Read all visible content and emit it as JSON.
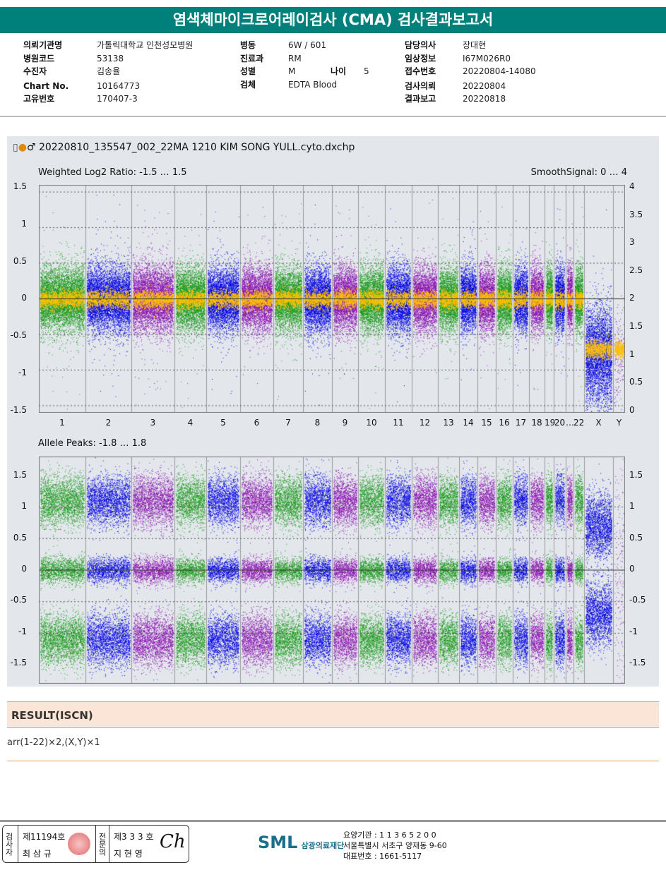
{
  "title": "염색체마이크로어레이검사 (CMA) 검사결과보고서",
  "info": {
    "col1": [
      {
        "label": "의뢰기관명",
        "value": "가톨릭대학교 인천성모병원"
      },
      {
        "label": "병원코드",
        "value": "53138"
      },
      {
        "label": "수진자",
        "value": "김송율"
      },
      {
        "label": "Chart No.",
        "value": "10164773"
      },
      {
        "label": "고유번호",
        "value": "170407-3"
      }
    ],
    "col2": [
      {
        "label": "병동",
        "value": "6W / 601"
      },
      {
        "label": "진료과",
        "value": "RM"
      },
      {
        "label": "성별",
        "value": "M"
      },
      {
        "label": "검체",
        "value": "EDTA Blood"
      }
    ],
    "age": {
      "label": "나이",
      "value": "5"
    },
    "col3": [
      {
        "label": "담당의사",
        "value": "장대현"
      },
      {
        "label": "임상정보",
        "value": "I67M026R0"
      },
      {
        "label": "접수번호",
        "value": "20220804-14080"
      },
      {
        "label": "검사의뢰",
        "value": "20220804"
      },
      {
        "label": "결과보고",
        "value": "20220818"
      }
    ]
  },
  "file_name": "20220810_135547_002_22MA 1210 KIM SONG YULL.cyto.dxchp",
  "chart_data": [
    {
      "type": "scatter",
      "title": "Weighted Log2 Ratio: -1.5 … 1.5",
      "right_title": "SmoothSignal: 0 … 4",
      "ylim": [
        -1.5,
        1.5
      ],
      "y_ticks": [
        "1.5",
        "1",
        "0.5",
        "0",
        "-0.5",
        "-1",
        "-1.5"
      ],
      "y2lim": [
        0,
        4
      ],
      "y2_ticks": [
        "4",
        "3.5",
        "3",
        "2.5",
        "2",
        "1.5",
        "1",
        "0.5",
        "0"
      ],
      "chromosomes": [
        "1",
        "2",
        "3",
        "4",
        "5",
        "6",
        "7",
        "8",
        "9",
        "10",
        "11",
        "12",
        "13",
        "14",
        "15",
        "16",
        "17",
        "18",
        "19",
        "20",
        "…",
        "22",
        "X",
        "Y"
      ],
      "baseline_log2": {
        "autosomes": 0,
        "X": -0.8,
        "Y": -0.8
      },
      "smooth_signal": {
        "autosomes": 2,
        "X": 1,
        "Y": 1
      }
    },
    {
      "type": "scatter",
      "title": "Allele Peaks: -1.8 … 1.8",
      "ylim": [
        -1.8,
        1.8
      ],
      "y_ticks": [
        "1.5",
        "1",
        "0.5",
        "0",
        "-0.5",
        "-1",
        "-1.5"
      ],
      "y2_ticks": [
        "1.5",
        "1",
        "0.5",
        "0",
        "-0.5",
        "-1",
        "-1.5"
      ],
      "peaks": {
        "autosomes": [
          -1.1,
          0,
          1.1
        ],
        "X": [
          -0.7,
          0.7
        ]
      }
    }
  ],
  "series_colors": [
    "#1a9a1a",
    "#0000e0",
    "#8a10b0"
  ],
  "smooth_color": "#ffc000",
  "result": {
    "heading": "RESULT(ISCN)",
    "value": "arr(1-22)×2,(X,Y)×1"
  },
  "footer": {
    "examiner_title": "검사자",
    "examiner_no": "제11194호",
    "examiner_name": "최 삼 규",
    "specialist_title": "전문의",
    "specialist_no": "제3 3 3 호",
    "specialist_name": "지 현 영",
    "logo": "SML",
    "org": "삼광의료재단",
    "code": "요양기관 : 1 1 3 6 5 2 0 0",
    "address": "서울특별시 서초구 양재동 9-60",
    "phone": "대표번호 : 1661-5117"
  }
}
